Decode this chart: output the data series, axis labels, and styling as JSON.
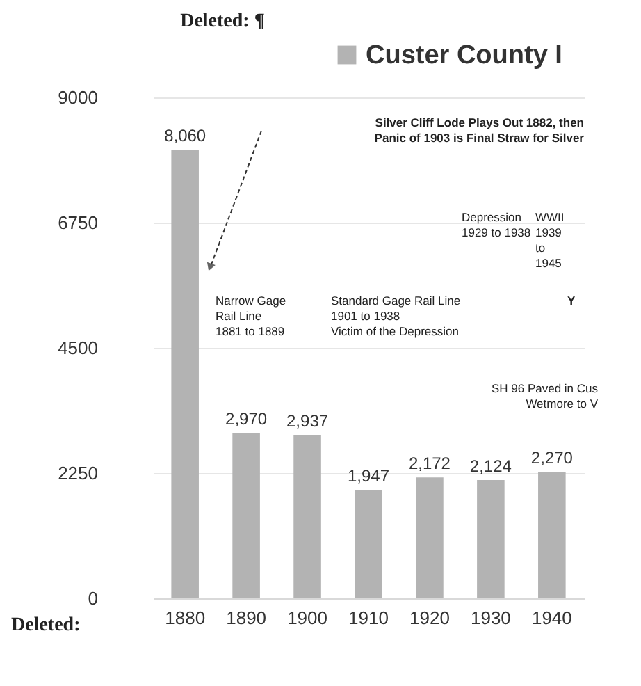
{
  "chart_data": {
    "type": "bar",
    "categories": [
      "1880",
      "1890",
      "1900",
      "1910",
      "1920",
      "1930",
      "1940"
    ],
    "series": [
      {
        "name": "Custer County I",
        "color": "#b3b3b3",
        "values": [
          8060,
          2970,
          2937,
          1947,
          2172,
          2124,
          2270
        ]
      }
    ],
    "value_labels": [
      "8,060",
      "2,970",
      "2,937",
      "1,947",
      "2,172",
      "2,124",
      "2,270"
    ],
    "ylim": [
      0,
      9000
    ],
    "yticks": [
      0,
      2250,
      4500,
      6750,
      9000
    ],
    "grid": "y",
    "legend": "top right",
    "data_labels": false,
    "annotations": [
      "Deleted: ¶",
      "Silver Cliff Lode Plays Out 1882, then\nPanic of 1903 is Final Straw for Silver",
      "Depression\n1929 to 1938",
      "WWII\n1939\nto\n1945",
      "Narrow Gage\nRail Line\n1881 to 1889",
      "Standard Gage Rail Line\n1901 to 1938\nVictim of the Depression",
      "Y",
      "SH 96 Paved in Cus\nWetmore to V",
      "Deleted:"
    ]
  }
}
